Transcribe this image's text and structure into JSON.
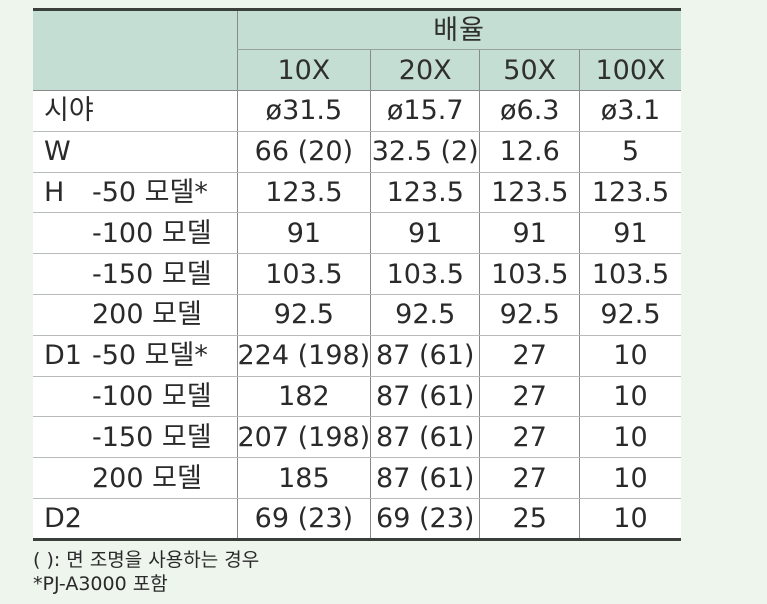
{
  "table": {
    "magnification_title": "배율",
    "columns": [
      "10X",
      "20X",
      "50X",
      "100X"
    ],
    "rows": [
      {
        "main": "시야",
        "sub": "",
        "values": [
          "ø31.5",
          "ø15.7",
          "ø6.3",
          "ø3.1"
        ]
      },
      {
        "main": "W",
        "sub": "",
        "values": [
          "66 (20)",
          "32.5 (2)",
          "12.6",
          "5"
        ]
      },
      {
        "main": "H",
        "sub": "-50 모델*",
        "values": [
          "123.5",
          "123.5",
          "123.5",
          "123.5"
        ]
      },
      {
        "main": "",
        "sub": "-100 모델",
        "values": [
          "91",
          "91",
          "91",
          "91"
        ]
      },
      {
        "main": "",
        "sub": "-150 모델",
        "values": [
          "103.5",
          "103.5",
          "103.5",
          "103.5"
        ]
      },
      {
        "main": "",
        "sub": "200 모델",
        "values": [
          "92.5",
          "92.5",
          "92.5",
          "92.5"
        ]
      },
      {
        "main": "D1",
        "sub": "-50 모델*",
        "values": [
          "224 (198)",
          "87 (61)",
          "27",
          "10"
        ]
      },
      {
        "main": "",
        "sub": "-100 모델",
        "values": [
          "182",
          "87 (61)",
          "27",
          "10"
        ]
      },
      {
        "main": "",
        "sub": "-150 모델",
        "values": [
          "207 (198)",
          "87 (61)",
          "27",
          "10"
        ]
      },
      {
        "main": "",
        "sub": "200 모델",
        "values": [
          "185",
          "87 (61)",
          "27",
          "10"
        ]
      },
      {
        "main": "D2",
        "sub": "",
        "values": [
          "69 (23)",
          "69 (23)",
          "25",
          "10"
        ]
      }
    ]
  },
  "notes": [
    "( ): 면 조명을 사용하는 경우",
    "*PJ-A3000 포함"
  ]
}
